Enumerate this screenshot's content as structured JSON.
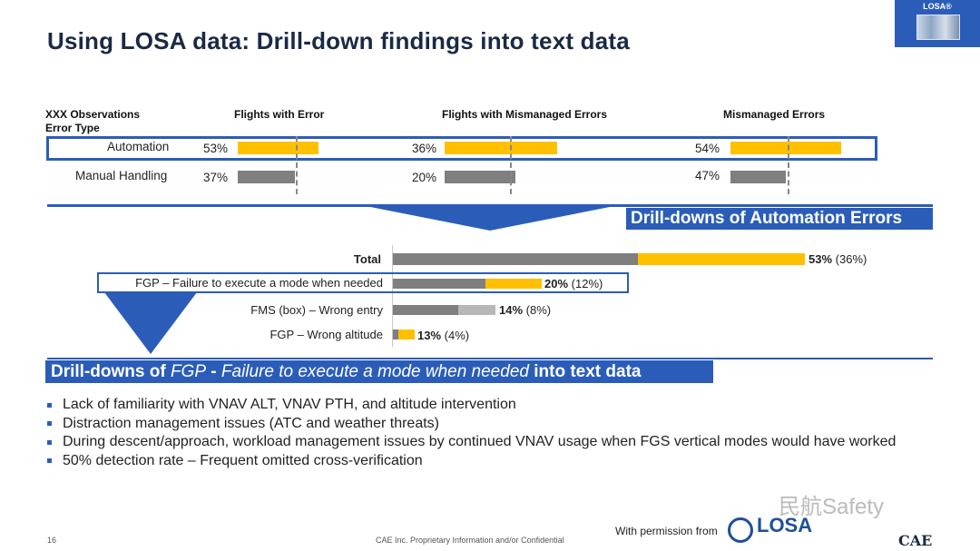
{
  "title": "Using LOSA data: Drill-down findings into text data",
  "badge": {
    "label": "LOSA®"
  },
  "table": {
    "header_left_1": "XXX Observations",
    "header_left_2": "Error Type",
    "columns": [
      "Flights with Error",
      "Flights with Mismanaged Errors",
      "Mismanaged Errors"
    ],
    "rows": [
      {
        "label": "Automation",
        "values": [
          "53%",
          "36%",
          "54%"
        ]
      },
      {
        "label": "Manual Handling",
        "values": [
          "37%",
          "20%",
          "47%"
        ]
      }
    ]
  },
  "banner1": {
    "text": "Drill-downs of Automation Errors"
  },
  "drilldown": [
    {
      "label": "Total",
      "value": "53%",
      "secondary": "(36%)"
    },
    {
      "label": "FGP – Failure to execute a mode when needed",
      "value": "20%",
      "secondary": "(12%)"
    },
    {
      "label": "FMS (box) – Wrong entry",
      "value": "14%",
      "secondary": "(8%)"
    },
    {
      "label": "FGP – Wrong altitude",
      "value": "13%",
      "secondary": "(4%)"
    }
  ],
  "banner2": {
    "part1": "Drill-downs  of ",
    "part2": "FGP",
    "part3": " - ",
    "part4": "Failure to execute a mode when needed",
    "part5": " into text data"
  },
  "bullets": [
    "Lack of familiarity with VNAV ALT, VNAV PTH, and altitude intervention",
    "Distraction management issues (ATC and weather threats)",
    "During descent/approach, workload management issues by continued VNAV usage when FGS vertical modes would have worked",
    "50% detection rate – Frequent omitted cross-verification"
  ],
  "footer": {
    "page_number": "16",
    "confidential": "CAE Inc. Proprietary Information and/or Confidential",
    "permission": "With permission from",
    "losa_logo": "LOSA",
    "cae_logo": "CAE",
    "watermark": "民航Safety"
  },
  "colors": {
    "accent": "#2b5db8",
    "yellow": "#ffc000",
    "gray": "#7f7f7f",
    "light_gray": "#b7b7b7"
  }
}
